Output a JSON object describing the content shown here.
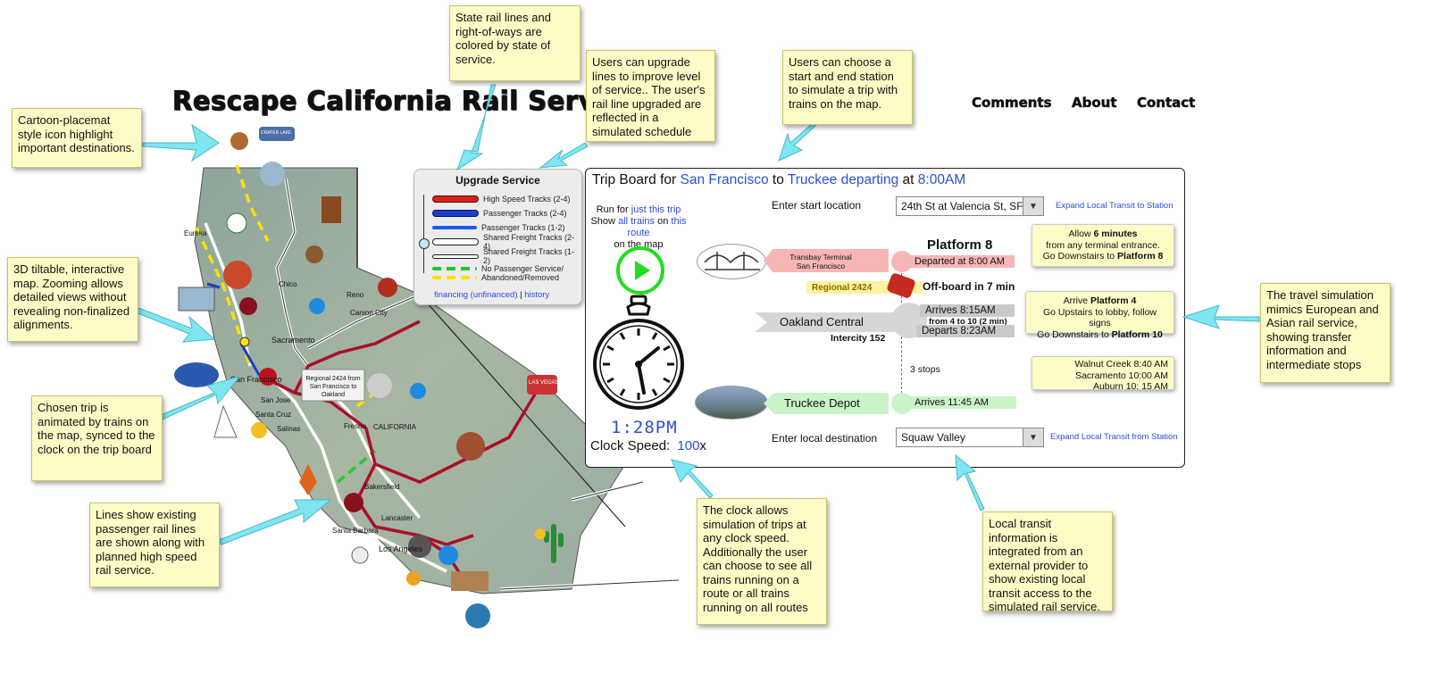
{
  "page": {
    "title": "Rescape California Rail Service",
    "nav": [
      "Comments",
      "About",
      "Contact"
    ]
  },
  "notes": {
    "state_lines": "State rail lines and right-of-ways are colored by state of service.",
    "upgrade_lines": "Users can upgrade lines to improve level of service.. The user's rail line upgraded are reflected in a simulated schedule",
    "choose_station": "Users can choose a start and end station to simulate a trip with trains on the map.",
    "placemat": "Cartoon-placemat style icon highlight important destinations.",
    "tiltable": "3D tiltable, interactive map. Zooming allows detailed views without revealing non-finalized alignments.",
    "animated": "Chosen trip is animated by trains on the map, synced to the clock on the trip board",
    "lines": "Lines show existing passenger rail lines are shown along with planned high speed rail service.",
    "clock": "The clock allows simulation of trips at any clock speed. Additionally the user can choose to see all trains running on a route or all trains running on all routes",
    "local_transit": "Local transit information is integrated from an external provider to show existing local transit access to the simulated rail service.",
    "travel_sim": "The travel simulation mimics European and Asian rail service, showing transfer information and intermediate stops"
  },
  "upgrade_panel": {
    "title": "Upgrade Service",
    "legend": [
      {
        "label": "High Speed Tracks (2-4)",
        "color": "#d0261e"
      },
      {
        "label": "Passenger Tracks (2-4)",
        "color": "#1e3ec8"
      },
      {
        "label": "Passenger Tracks (1-2)",
        "color": "#1e5cf0"
      },
      {
        "label": "Shared Freight Tracks (2-4)",
        "color": "#ffffff"
      },
      {
        "label": "Shared Freight Tracks (1-2)",
        "color": "#ffffff"
      },
      {
        "label": "No Passenger Service/",
        "color": "#ffe000"
      },
      {
        "label": "Abandoned/Removed",
        "color": "#ffe000"
      }
    ],
    "financing": "financing (unfinanced)",
    "sep": "|",
    "history": "history"
  },
  "map": {
    "labels": {
      "eureka": "Eureka",
      "chico": "Chico",
      "reno": "Reno",
      "carson": "Carson City",
      "sacramento": "Sacramento",
      "san_francisco": "San Francisco",
      "san_jose": "San Jose",
      "santa_cruz": "Santa Cruz",
      "salinas": "Salinas",
      "fresno": "Fresno",
      "california": "CALIFORNIA",
      "bakersfield": "Bakersfield",
      "lancaster": "Lancaster",
      "santa_barbara": "Santa Barbara",
      "los_angeles": "Los Angeles",
      "crater_lake": "CRATER LAKE",
      "las_vegas": "LAS VEGAS"
    },
    "popup": "Regional 2424 from San Francisco to Oakland"
  },
  "trip_board": {
    "heading_prefix": "Trip Board for",
    "start": "San Francisco",
    "to": "to",
    "end": "Truckee departing",
    "at": "at",
    "time": "8:00AM",
    "run_for": "Run for",
    "just_trip": "just this trip",
    "show": "Show",
    "all_trains": "all trains",
    "on": "on",
    "this_route": "this route",
    "on_map": "on the map",
    "clock_time": "1:28PM",
    "clock_speed_label": "Clock Speed:",
    "clock_speed_value": "100",
    "clock_speed_unit": "x",
    "start_location_label": "Enter start location",
    "start_location_value": "24th St at Valencia St, SF",
    "expand_to": "Expand Local Transit to Station",
    "destination_label": "Enter local destination",
    "destination_value": "Squaw Valley",
    "expand_from": "Expand Local Transit from Station",
    "transbay": "Transbay Terminal",
    "transbay_city": "San Francisco",
    "platform": "Platform 8",
    "departed": "Departed at 8:00 AM",
    "regional": "Regional 2424",
    "offboard": "Off-board in 7 min",
    "oakland": "Oakland Central",
    "intercity": "Intercity 152",
    "arrives1": "Arrives 8:15AM",
    "from_to": "from 4 to 10 (2 min)",
    "departs1": "Departs  8:23AM",
    "stops": "3 stops",
    "truckee": "Truckee Depot",
    "arrives2": "Arrives 11:45 AM",
    "tip1_line1_pre": "Allow",
    "tip1_line1_bold": "6 minutes",
    "tip1_line2": "from any terminal entrance.",
    "tip1_line3_pre": "Go Downstairs to",
    "tip1_line3_bold": "Platform 8",
    "tip2_line1_pre": "Arrive",
    "tip2_line1_bold": "Platform 4",
    "tip2_line2": "Go Upstairs to lobby, follow signs",
    "tip2_line3_pre": "Go Downstairs to",
    "tip2_line3_bold": "Platform 10",
    "tip3_line1": "Walnut Creek  8:40 AM",
    "tip3_line2": "Sacramento 10:00 AM",
    "tip3_line3": "Auburn 10: 15 AM"
  }
}
